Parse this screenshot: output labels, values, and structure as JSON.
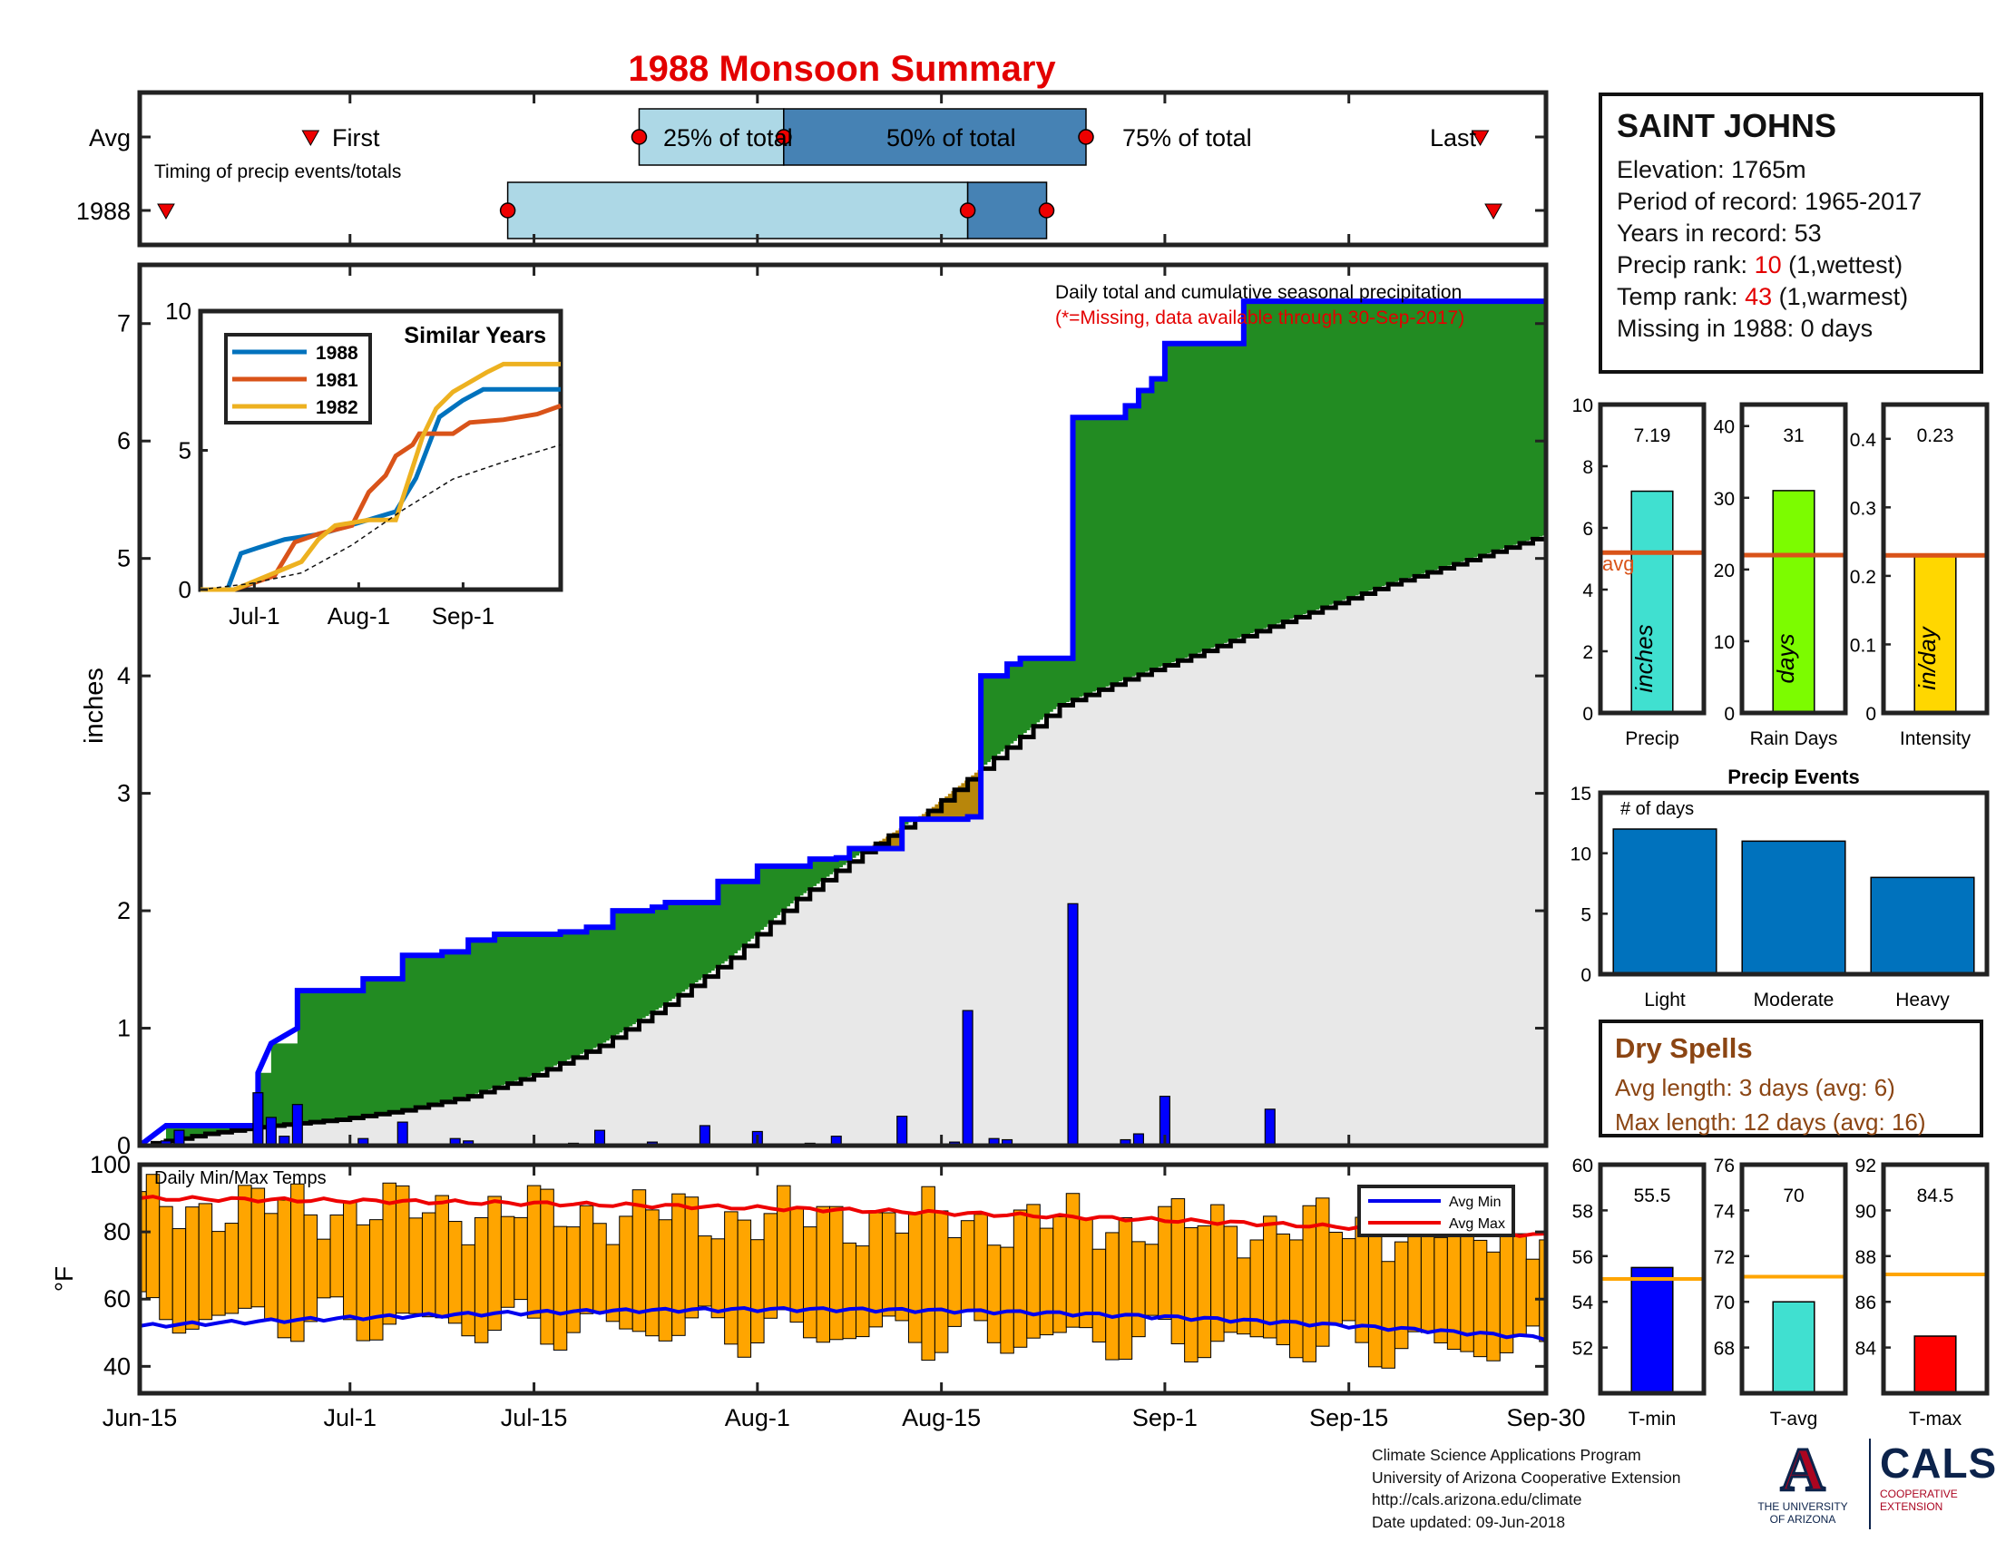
{
  "title": "1988 Monsoon Summary",
  "station": {
    "name": "SAINT JOHNS",
    "elevation": "Elevation: 1765m",
    "period": "Period of record: 1965-2017",
    "years": "Years in record: 53",
    "precip_rank_label": "Precip rank: ",
    "precip_rank_value": "10",
    "precip_rank_suffix": " (1,wettest)",
    "temp_rank_label": "Temp rank: ",
    "temp_rank_value": "43",
    "temp_rank_suffix": " (1,warmest)",
    "missing": "Missing in 1988: 0 days"
  },
  "dry_spells": {
    "title": "Dry Spells",
    "avg_length": "Avg length: 3 days (avg: 6)",
    "max_length": "Max length: 12 days (avg: 16)"
  },
  "credits": {
    "line1": "Climate Science Applications Program",
    "line2": "University of Arizona Cooperative Extension",
    "line3": "http://cals.arizona.edu/climate",
    "line4": " Date updated: 09-Jun-2018"
  },
  "logos": {
    "ua_letter": "A",
    "ua_line1": "THE UNIVERSITY",
    "ua_line2": "OF ARIZONA",
    "cals": "CALS",
    "cals_line1": "COOPERATIVE",
    "cals_line2": "EXTENSION"
  },
  "colors": {
    "avg_line": "#d95319",
    "wet_fill": "#228b22",
    "dry_fill": "#b8860b",
    "avg_fill": "#e8e8e8",
    "observed_line": "#0000ff",
    "temp_bars": "#ffa500",
    "avg_min_line": "#0000ee",
    "avg_max_line": "#ee0000",
    "timing_light": "#add8e6",
    "timing_dark": "#4682b4"
  },
  "chart_data": [
    {
      "id": "timing",
      "type": "bar",
      "subtitle": "Timing of precip events/totals",
      "rows": [
        "Avg",
        "1988"
      ],
      "labels": {
        "first": "First",
        "p25": "25% of total",
        "p50": "50% of total",
        "p75": "75% of total",
        "last": "Last"
      },
      "avg": {
        "first": "Jun-28",
        "p25": "Jul-23",
        "p50": "Aug-3",
        "p75": "Aug-26",
        "last": "Sep-25"
      },
      "y1988": {
        "first": "Jun-17",
        "p25": "Jul-13",
        "p50": "Aug-17",
        "p75": "Aug-23",
        "last": "Sep-26"
      },
      "xlim": [
        "Jun-15",
        "Sep-30"
      ]
    },
    {
      "id": "cumulative",
      "type": "area",
      "title": "Daily total and cumulative seasonal precipitation",
      "note": "(*=Missing, data available through 30-Sep-2017)",
      "ylabel": "inches",
      "xlim": [
        "Jun-15",
        "Sep-30"
      ],
      "ylim": [
        0,
        7.5
      ],
      "yticks": [
        0,
        1,
        2,
        3,
        4,
        5,
        6,
        7
      ],
      "xticks": [
        "Jun-15",
        "Jul-1",
        "Jul-15",
        "Aug-1",
        "Aug-15",
        "Sep-1",
        "Sep-15",
        "Sep-30"
      ],
      "cumulative_1988": [
        [
          0,
          0.0
        ],
        [
          2,
          0.17
        ],
        [
          9,
          0.17
        ],
        [
          9,
          0.62
        ],
        [
          10,
          0.87
        ],
        [
          12,
          1.0
        ],
        [
          12,
          1.32
        ],
        [
          17,
          1.32
        ],
        [
          17,
          1.42
        ],
        [
          20,
          1.42
        ],
        [
          20,
          1.62
        ],
        [
          23,
          1.62
        ],
        [
          23,
          1.65
        ],
        [
          25,
          1.65
        ],
        [
          25,
          1.75
        ],
        [
          27,
          1.75
        ],
        [
          27,
          1.8
        ],
        [
          32,
          1.8
        ],
        [
          32,
          1.82
        ],
        [
          34,
          1.82
        ],
        [
          34,
          1.86
        ],
        [
          36,
          1.86
        ],
        [
          36,
          2.0
        ],
        [
          39,
          2.0
        ],
        [
          39,
          2.03
        ],
        [
          40,
          2.03
        ],
        [
          40,
          2.07
        ],
        [
          44,
          2.07
        ],
        [
          44,
          2.25
        ],
        [
          47,
          2.25
        ],
        [
          47,
          2.38
        ],
        [
          51,
          2.38
        ],
        [
          51,
          2.44
        ],
        [
          53,
          2.44
        ],
        [
          53,
          2.45
        ],
        [
          54,
          2.45
        ],
        [
          54,
          2.53
        ],
        [
          58,
          2.53
        ],
        [
          58,
          2.78
        ],
        [
          63,
          2.78
        ],
        [
          63,
          2.8
        ],
        [
          64,
          2.8
        ],
        [
          64,
          4.0
        ],
        [
          66,
          4.0
        ],
        [
          66,
          4.1
        ],
        [
          67,
          4.1
        ],
        [
          67,
          4.15
        ],
        [
          71,
          4.15
        ],
        [
          71,
          6.2
        ],
        [
          75,
          6.2
        ],
        [
          75,
          6.3
        ],
        [
          76,
          6.3
        ],
        [
          76,
          6.43
        ],
        [
          77,
          6.43
        ],
        [
          77,
          6.53
        ],
        [
          78,
          6.53
        ],
        [
          78,
          6.83
        ],
        [
          84,
          6.83
        ],
        [
          84,
          7.19
        ],
        [
          107,
          7.19
        ]
      ],
      "average_cumulative": [
        [
          0,
          0.0
        ],
        [
          5,
          0.1
        ],
        [
          10,
          0.17
        ],
        [
          15,
          0.22
        ],
        [
          20,
          0.3
        ],
        [
          25,
          0.42
        ],
        [
          30,
          0.6
        ],
        [
          35,
          0.85
        ],
        [
          40,
          1.2
        ],
        [
          45,
          1.6
        ],
        [
          50,
          2.1
        ],
        [
          55,
          2.5
        ],
        [
          60,
          2.85
        ],
        [
          65,
          3.3
        ],
        [
          70,
          3.75
        ],
        [
          75,
          3.97
        ],
        [
          80,
          4.17
        ],
        [
          85,
          4.38
        ],
        [
          90,
          4.58
        ],
        [
          95,
          4.78
        ],
        [
          100,
          4.95
        ],
        [
          107,
          5.2
        ]
      ],
      "daily_bars": [
        [
          2,
          0.04
        ],
        [
          3,
          0.13
        ],
        [
          9,
          0.45
        ],
        [
          10,
          0.24
        ],
        [
          11,
          0.08
        ],
        [
          12,
          0.35
        ],
        [
          17,
          0.06
        ],
        [
          20,
          0.2
        ],
        [
          24,
          0.06
        ],
        [
          25,
          0.04
        ],
        [
          33,
          0.02
        ],
        [
          35,
          0.13
        ],
        [
          39,
          0.03
        ],
        [
          43,
          0.17
        ],
        [
          47,
          0.12
        ],
        [
          51,
          0.02
        ],
        [
          53,
          0.08
        ],
        [
          58,
          0.25
        ],
        [
          62,
          0.03
        ],
        [
          63,
          1.15
        ],
        [
          65,
          0.06
        ],
        [
          66,
          0.05
        ],
        [
          71,
          2.06
        ],
        [
          75,
          0.05
        ],
        [
          76,
          0.1
        ],
        [
          78,
          0.42
        ],
        [
          86,
          0.31
        ]
      ]
    },
    {
      "id": "similar_years",
      "type": "line",
      "title": "Similar Years",
      "xticks": [
        "Jul-1",
        "Aug-1",
        "Sep-1"
      ],
      "ylim": [
        0,
        10
      ],
      "yticks": [
        0,
        5,
        10
      ],
      "series": [
        {
          "name": "1988",
          "color": "#0072bd",
          "points": [
            [
              0,
              0
            ],
            [
              8,
              0
            ],
            [
              12,
              1.3
            ],
            [
              17,
              1.5
            ],
            [
              25,
              1.8
            ],
            [
              36,
              2.0
            ],
            [
              47,
              2.4
            ],
            [
              58,
              2.8
            ],
            [
              64,
              4.0
            ],
            [
              71,
              6.2
            ],
            [
              78,
              6.8
            ],
            [
              84,
              7.19
            ],
            [
              107,
              7.19
            ]
          ]
        },
        {
          "name": "1981",
          "color": "#d95319",
          "points": [
            [
              0,
              0
            ],
            [
              10,
              0
            ],
            [
              22,
              0.5
            ],
            [
              28,
              1.7
            ],
            [
              35,
              2.0
            ],
            [
              45,
              2.3
            ],
            [
              50,
              3.5
            ],
            [
              55,
              4.1
            ],
            [
              58,
              4.8
            ],
            [
              63,
              5.2
            ],
            [
              65,
              5.6
            ],
            [
              75,
              5.6
            ],
            [
              80,
              6.0
            ],
            [
              90,
              6.1
            ],
            [
              100,
              6.3
            ],
            [
              107,
              6.6
            ]
          ]
        },
        {
          "name": "1982",
          "color": "#edb120",
          "points": [
            [
              0,
              0
            ],
            [
              10,
              0
            ],
            [
              18,
              0.4
            ],
            [
              30,
              1.0
            ],
            [
              35,
              1.8
            ],
            [
              40,
              2.3
            ],
            [
              50,
              2.5
            ],
            [
              58,
              2.5
            ],
            [
              62,
              4.0
            ],
            [
              66,
              5.5
            ],
            [
              70,
              6.5
            ],
            [
              75,
              7.1
            ],
            [
              85,
              7.8
            ],
            [
              90,
              8.1
            ],
            [
              107,
              8.1
            ]
          ]
        },
        {
          "name": "Avg",
          "color": "#111111",
          "points": [
            [
              0,
              0
            ],
            [
              15,
              0.22
            ],
            [
              30,
              0.6
            ],
            [
              45,
              1.6
            ],
            [
              60,
              2.85
            ],
            [
              75,
              3.97
            ],
            [
              90,
              4.58
            ],
            [
              107,
              5.2
            ]
          ]
        }
      ]
    },
    {
      "id": "totals",
      "type": "bar",
      "panels": [
        {
          "category": "Precip",
          "value": 7.19,
          "value_label": "7.19",
          "avg": 5.2,
          "avg_label": "avg",
          "unit": "inches",
          "ylim": [
            0,
            10
          ],
          "yticks": [
            0,
            2,
            4,
            6,
            8,
            10
          ],
          "color": "#40e0d0"
        },
        {
          "category": "Rain Days",
          "value": 31,
          "value_label": "31",
          "avg": 22,
          "unit": "days",
          "ylim": [
            0,
            43
          ],
          "yticks": [
            0,
            10,
            20,
            30,
            40
          ],
          "color": "#7cfc00"
        },
        {
          "category": "Intensity",
          "value": 0.23,
          "value_label": "0.23",
          "avg": 0.23,
          "unit": "in/day",
          "ylim": [
            0,
            0.45
          ],
          "yticks": [
            0,
            0.1,
            0.2,
            0.3,
            0.4
          ],
          "color": "#ffd700"
        }
      ]
    },
    {
      "id": "precip_events",
      "type": "bar",
      "title": "Precip Events",
      "ylabel": "# of days",
      "categories": [
        "Light",
        "Moderate",
        "Heavy"
      ],
      "values": [
        12,
        11,
        8
      ],
      "ylim": [
        0,
        15
      ],
      "yticks": [
        0,
        5,
        10,
        15
      ]
    },
    {
      "id": "daily_temps",
      "type": "bar",
      "title": "Daily Min/Max Temps",
      "ylabel": "°F",
      "ylim": [
        32,
        100
      ],
      "yticks": [
        40,
        60,
        80,
        100
      ],
      "xlim": [
        "Jun-15",
        "Sep-30"
      ],
      "legend": [
        "Avg Min",
        "Avg Max"
      ],
      "legend_position": "top-right"
    },
    {
      "id": "temp_summary",
      "type": "bar",
      "panels": [
        {
          "category": "T-min",
          "value": 55.5,
          "value_label": "55.5",
          "avg": 55.0,
          "ylim": [
            50,
            60
          ],
          "yticks": [
            52,
            54,
            56,
            58,
            60
          ],
          "color": "#0000ff"
        },
        {
          "category": "T-avg",
          "value": 70,
          "value_label": "70",
          "avg": 71.1,
          "ylim": [
            66,
            76
          ],
          "yticks": [
            68,
            70,
            72,
            74,
            76
          ],
          "color": "#40e0d0"
        },
        {
          "category": "T-max",
          "value": 84.5,
          "value_label": "84.5",
          "avg": 87.2,
          "ylim": [
            82,
            92
          ],
          "yticks": [
            84,
            86,
            88,
            90,
            92
          ],
          "color": "#ff0000"
        }
      ]
    }
  ]
}
